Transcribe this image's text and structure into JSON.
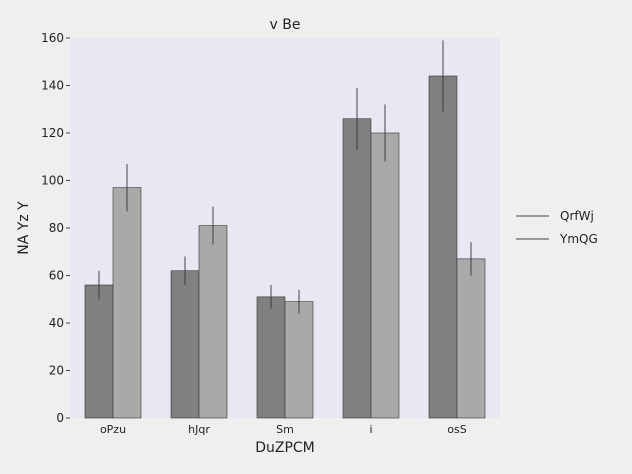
{
  "colors": {
    "page_background": "#efefef",
    "plot_background": "#e8e8f2",
    "series_1": "#808080",
    "series_2": "#a9a9a9",
    "bar_edge": "#333333",
    "error_bar": "#333333"
  },
  "chart_data": {
    "type": "bar",
    "title": "v Be",
    "xlabel": "DuZPCM",
    "ylabel": "NA Yz Y",
    "categories": [
      "oPzu",
      "hJqr",
      "Sm",
      "i",
      "osS"
    ],
    "ylim": [
      0,
      160
    ],
    "yticks": [
      0,
      20,
      40,
      60,
      80,
      100,
      120,
      140,
      160
    ],
    "grid": false,
    "legend_position": "right",
    "series": [
      {
        "name": "QrfWj",
        "values": [
          56,
          62,
          51,
          126,
          144
        ],
        "errors": [
          6,
          6,
          5,
          13,
          15
        ]
      },
      {
        "name": "YmQG",
        "values": [
          97,
          81,
          49,
          120,
          67
        ],
        "errors": [
          10,
          8,
          5,
          12,
          7
        ]
      }
    ]
  }
}
